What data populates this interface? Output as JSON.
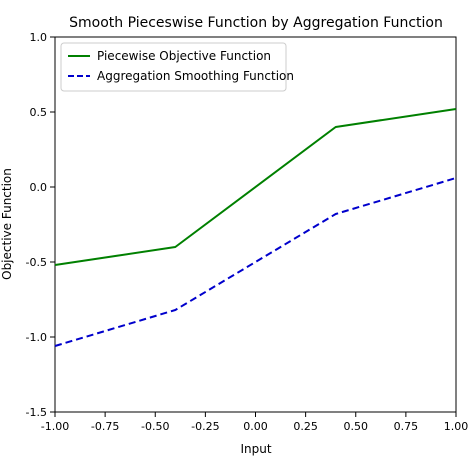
{
  "chart_data": {
    "type": "line",
    "title": "Smooth Pieceswise Function by Aggregation Function",
    "xlabel": "Input",
    "ylabel": "Objective Function",
    "xlim": [
      -1.0,
      1.0
    ],
    "ylim": [
      -1.5,
      1.0
    ],
    "xticks": [
      -1.0,
      -0.75,
      -0.5,
      -0.25,
      0.0,
      0.25,
      0.5,
      0.75,
      1.0
    ],
    "xtick_labels": [
      "-1.00",
      "-0.75",
      "-0.50",
      "-0.25",
      "0.00",
      "0.25",
      "0.50",
      "0.75",
      "1.00"
    ],
    "yticks": [
      1.0,
      0.5,
      0.0,
      -0.5,
      -1.0,
      -1.5
    ],
    "ytick_labels": [
      "1.0",
      "0.5",
      "0.0",
      "-0.5",
      "-1.0",
      "-1.5"
    ],
    "grid": false,
    "legend_position": "top-left",
    "series": [
      {
        "name": "Piecewise Objective Function",
        "color": "#008000",
        "style": "solid",
        "x": [
          -1.0,
          -0.4,
          0.4,
          1.0
        ],
        "y": [
          -0.52,
          -0.4,
          0.4,
          0.52
        ]
      },
      {
        "name": "Aggregation Smoothing Function",
        "color": "#0000cc",
        "style": "dashed",
        "x": [
          -1.0,
          -0.4,
          0.4,
          1.0
        ],
        "y": [
          -1.06,
          -0.82,
          -0.18,
          0.06
        ]
      }
    ]
  }
}
